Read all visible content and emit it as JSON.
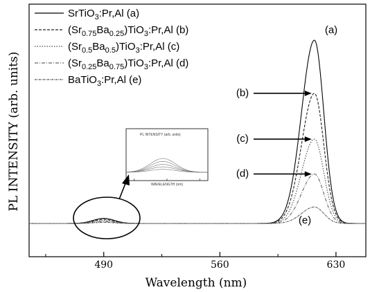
{
  "chart_data": {
    "type": "line",
    "xlabel": "Wavelength (nm)",
    "ylabel": "PL INTENSITY (arb. units)",
    "xlim": [
      445,
      648
    ],
    "ylim": [
      0,
      1.05
    ],
    "x_ticks": [
      490,
      560,
      630
    ],
    "x_tick_labels": [
      "490",
      "560",
      "630"
    ],
    "grid": false,
    "legend_position": "top-left",
    "series": [
      {
        "name": "SrTiO3:Pr,Al (a)",
        "legend": {
          "base": "SrTiO",
          "sub": "3",
          "rest": ":Pr,Al (a)"
        },
        "peak_label": "(a)",
        "peak_wavelength": 617,
        "peak_intensity": 1.0,
        "small_peak": 0.028,
        "color": "#000000",
        "dash": ""
      },
      {
        "name": "(Sr0.75Ba0.25)TiO3:Pr,Al (b)",
        "legend": {
          "base": "(Sr",
          "sub": "0.75",
          "mid": "Ba",
          "sub2": "0.25",
          "mid2": ")TiO",
          "sub3": "3",
          "rest": ":Pr,Al (b)"
        },
        "peak_label": "(b)",
        "peak_wavelength": 617,
        "peak_intensity": 0.71,
        "small_peak": 0.022,
        "color": "#222222",
        "dash": "4,2"
      },
      {
        "name": "(Sr0.5Ba0.5)TiO3:Pr,Al (c)",
        "legend": {
          "base": "(Sr",
          "sub": "0.5",
          "mid": "Ba",
          "sub2": "0.5",
          "mid2": ")TiO",
          "sub3": "3",
          "rest": ":Pr,Al (c)"
        },
        "peak_label": "(c)",
        "peak_wavelength": 617,
        "peak_intensity": 0.46,
        "small_peak": 0.016,
        "color": "#444444",
        "dash": "1.5,2"
      },
      {
        "name": "(Sr0.25Ba0.75)TiO3:Pr,Al (d)",
        "legend": {
          "base": "(Sr",
          "sub": "0.25",
          "mid": "Ba",
          "sub2": "0.75",
          "mid2": ")TiO",
          "sub3": "3",
          "rest": ":Pr,Al (d)"
        },
        "peak_label": "(d)",
        "peak_wavelength": 617,
        "peak_intensity": 0.27,
        "small_peak": 0.011,
        "color": "#666666",
        "dash": "5,2,1,2"
      },
      {
        "name": "BaTiO3:Pr,Al (e)",
        "legend": {
          "base": "BaTiO",
          "sub": "3",
          "rest": ":Pr,Al (e)"
        },
        "peak_label": "(e)",
        "peak_wavelength": 617,
        "peak_intensity": 0.09,
        "small_peak": 0.006,
        "color": "#555555",
        "dash": "3,1,1,1"
      }
    ],
    "inset": {
      "xlabel": "WAVELENGTH (nm)",
      "ylabel": "PL INTENSITY (arb. units)"
    }
  }
}
